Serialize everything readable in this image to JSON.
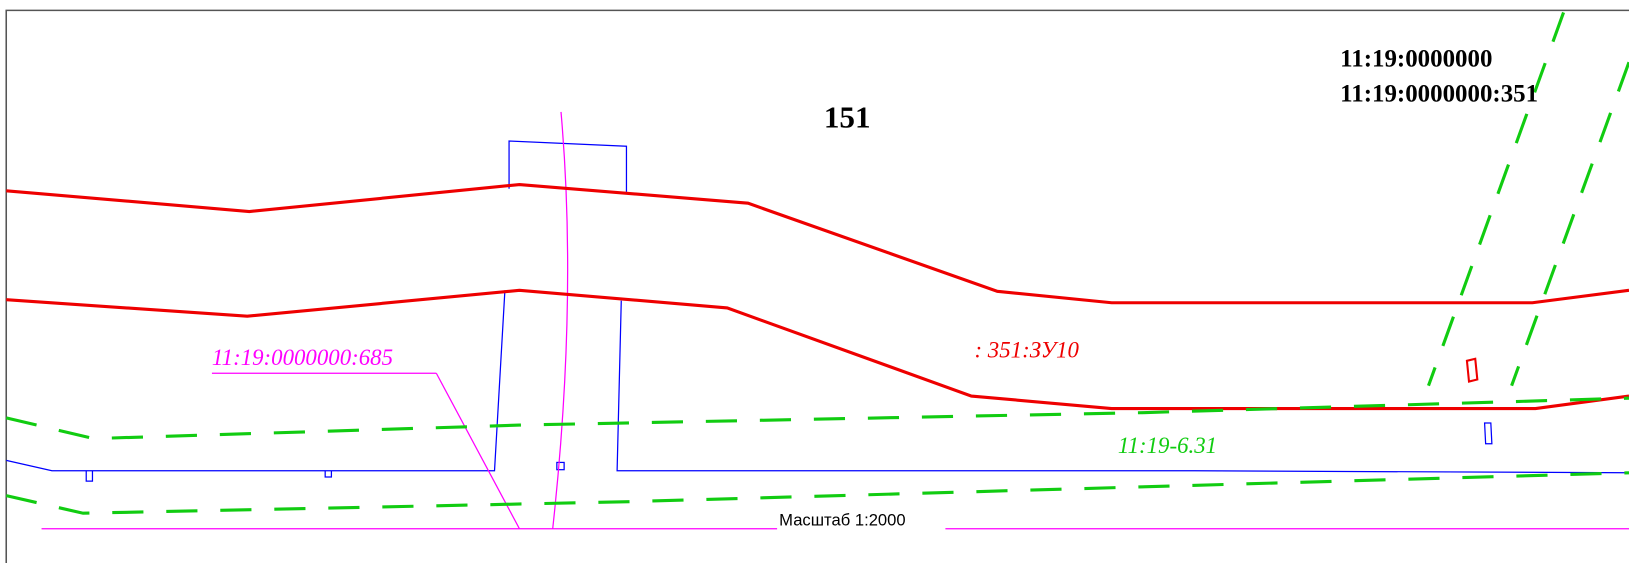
{
  "labels": {
    "quarter": "11:19:0000000",
    "parcel": "11:19:0000000:351",
    "block": "151",
    "neighbor_parcel": "11:19:0000000:685",
    "new_parcel": ": 351:ЗУ10",
    "zone": "11:19-6.31",
    "scale": "Масштаб 1:2000"
  }
}
